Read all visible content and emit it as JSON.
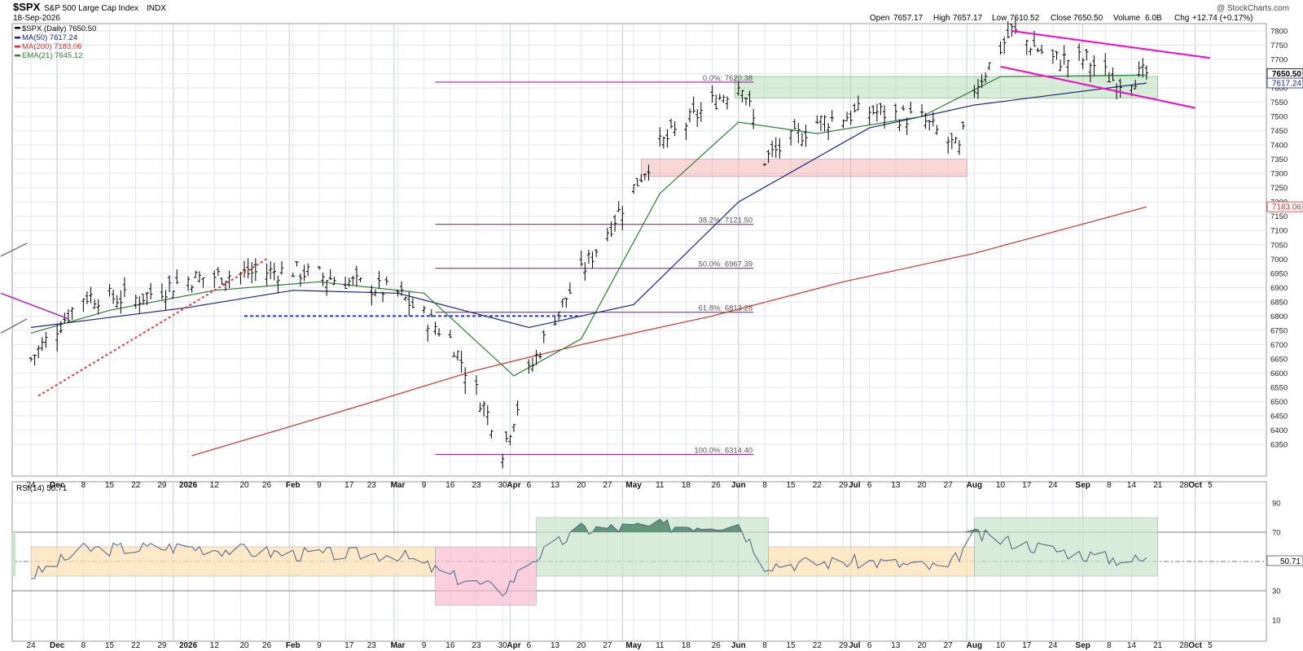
{
  "header": {
    "symbol": "$SPX",
    "name": "S&P 500 Large Cap Index",
    "exchange": "INDX",
    "date": "18-Sep-2026",
    "watermark": "@ StockCharts.com",
    "open_label": "Open",
    "open": "7657.17",
    "high_label": "High",
    "high": "7657.17",
    "low_label": "Low",
    "low": "7610.52",
    "close_label": "Close",
    "close": "7650.50",
    "volume_label": "Volume",
    "volume": "6.0B",
    "chg_label": "Chg",
    "chg": "+12.74 (+0.17%)"
  },
  "legend": [
    {
      "label": "$SPX (Daily) 7650.50",
      "color": "#000000"
    },
    {
      "label": "MA(50) 7617.24",
      "color": "#1a237e"
    },
    {
      "label": "MA(200) 7183.06",
      "color": "#d32f2f"
    },
    {
      "label": "EMA(21) 7645.12",
      "color": "#2e7d32"
    }
  ],
  "price_axis": {
    "ticks": [
      6350,
      6400,
      6450,
      6500,
      6550,
      6600,
      6650,
      6700,
      6750,
      6800,
      6850,
      6900,
      6950,
      7000,
      7050,
      7100,
      7150,
      7200,
      7250,
      7300,
      7350,
      7400,
      7450,
      7500,
      7550,
      7600,
      7650,
      7700,
      7750,
      7800
    ],
    "ymin": 6300,
    "ymax": 7830,
    "last_label": "7650.50",
    "ma50_label": "7617.24",
    "ma200_label": "7183.06"
  },
  "x_axis": {
    "labels": [
      "24",
      "Dec",
      "8",
      "15",
      "22",
      "29",
      "2026",
      "12",
      "20",
      "26",
      "Feb",
      "9",
      "17",
      "23",
      "Mar",
      "9",
      "16",
      "23",
      "30",
      "Apr",
      "6",
      "13",
      "20",
      "27",
      "May",
      "11",
      "18",
      "26",
      "Jun",
      "8",
      "15",
      "22",
      "29",
      "Jul",
      "6",
      "13",
      "20",
      "27",
      "Aug",
      "10",
      "17",
      "24",
      "Sep",
      "8",
      "14",
      "21",
      "28",
      "Oct",
      "5"
    ]
  },
  "fib_levels": [
    {
      "label": "0.0%: 7620.38",
      "value": 7620.38
    },
    {
      "label": "38.2%: 7121.50",
      "value": 7121.5
    },
    {
      "label": "50.0%: 6967.39",
      "value": 6967.39
    },
    {
      "label": "61.8%: 6813.28",
      "value": 6813.28
    },
    {
      "label": "100.0%: 6314.40",
      "value": 6314.4
    }
  ],
  "rsi": {
    "label": "RSI(14) 50.71",
    "value_label": "50.71",
    "ticks": [
      10,
      30,
      50,
      70,
      90
    ]
  },
  "chart_data": [
    {
      "type": "line",
      "title": "$SPX S&P 500 Large Cap Index INDX",
      "x_start": "2025-11-24",
      "x_end": "2026-09-18",
      "ylim": [
        6300,
        7830
      ],
      "log_scale": false,
      "grid": true,
      "series": [
        {
          "name": "$SPX (Daily)",
          "last": 7650.5,
          "x": [
            "2025-11-24",
            "2025-12-08",
            "2025-12-22",
            "2026-01-05",
            "2026-01-20",
            "2026-02-02",
            "2026-02-17",
            "2026-03-02",
            "2026-03-16",
            "2026-03-27",
            "2026-03-30",
            "2026-04-06",
            "2026-04-13",
            "2026-04-27",
            "2026-05-11",
            "2026-05-26",
            "2026-06-02",
            "2026-06-08",
            "2026-06-22",
            "2026-07-06",
            "2026-07-20",
            "2026-07-30",
            "2026-08-03",
            "2026-08-13",
            "2026-08-24",
            "2026-09-02",
            "2026-09-10",
            "2026-09-18"
          ],
          "values": [
            6650,
            6870,
            6860,
            6930,
            6950,
            6960,
            6920,
            6880,
            6720,
            6430,
            6330,
            6600,
            6800,
            7100,
            7400,
            7560,
            7620,
            7350,
            7480,
            7520,
            7490,
            7380,
            7600,
            7800,
            7700,
            7700,
            7620,
            7650
          ]
        },
        {
          "name": "MA(50)",
          "last": 7617.24,
          "x": [
            "2025-11-24",
            "2026-01-05",
            "2026-02-02",
            "2026-03-02",
            "2026-04-06",
            "2026-05-04",
            "2026-06-01",
            "2026-07-06",
            "2026-08-03",
            "2026-09-18"
          ],
          "values": [
            6760,
            6830,
            6890,
            6880,
            6760,
            6840,
            7200,
            7460,
            7540,
            7617
          ]
        },
        {
          "name": "MA(200)",
          "last": 7183.06,
          "x": [
            "2026-01-06",
            "2026-02-16",
            "2026-03-23",
            "2026-04-20",
            "2026-05-25",
            "2026-06-29",
            "2026-08-03",
            "2026-09-18"
          ],
          "values": [
            6310,
            6470,
            6610,
            6700,
            6800,
            6920,
            7020,
            7183
          ]
        },
        {
          "name": "EMA(21)",
          "last": 7645.12,
          "x": [
            "2025-11-24",
            "2025-12-15",
            "2026-01-12",
            "2026-02-09",
            "2026-03-09",
            "2026-04-02",
            "2026-04-20",
            "2026-05-11",
            "2026-06-01",
            "2026-06-22",
            "2026-07-20",
            "2026-08-10",
            "2026-09-18"
          ],
          "values": [
            6740,
            6820,
            6890,
            6920,
            6880,
            6590,
            6720,
            7230,
            7480,
            7440,
            7500,
            7640,
            7645
          ]
        }
      ],
      "fib_retracement": {
        "high": 7620.38,
        "low": 6314.4
      }
    },
    {
      "type": "line",
      "title": "RSI(14) 50.71",
      "ylim": [
        0,
        100
      ],
      "series": [
        {
          "name": "RSI(14)",
          "last": 50.71,
          "x": [
            "2025-11-24",
            "2025-12-08",
            "2026-01-05",
            "2026-02-02",
            "2026-03-02",
            "2026-03-16",
            "2026-03-30",
            "2026-04-06",
            "2026-04-20",
            "2026-05-11",
            "2026-06-01",
            "2026-06-08",
            "2026-07-06",
            "2026-07-27",
            "2026-08-03",
            "2026-08-24",
            "2026-09-08",
            "2026-09-18"
          ],
          "values": [
            40,
            58,
            60,
            55,
            55,
            40,
            30,
            50,
            72,
            74,
            76,
            48,
            50,
            45,
            68,
            58,
            52,
            50.71
          ]
        }
      ],
      "reference_lines": [
        30,
        50,
        70
      ]
    }
  ]
}
